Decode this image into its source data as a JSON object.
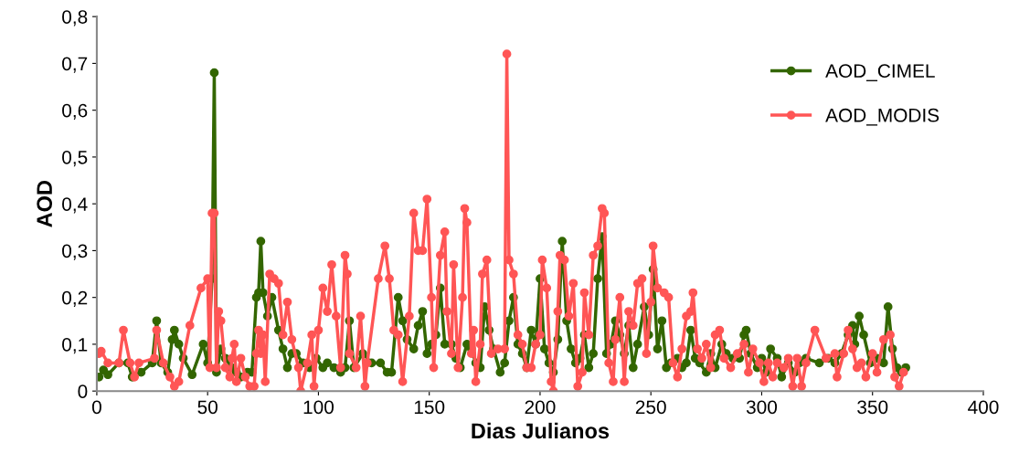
{
  "chart_data": {
    "type": "line",
    "xlabel": "Dias Julianos",
    "ylabel": "AOD",
    "xlim": [
      0,
      400
    ],
    "xticks": [
      0,
      50,
      100,
      150,
      200,
      250,
      300,
      350,
      400
    ],
    "ylim": [
      0,
      0.8
    ],
    "yticks": [
      0,
      {
        "value": 0.1,
        "label": "0,1"
      },
      {
        "value": 0.2,
        "label": "0,2"
      },
      {
        "value": 0.3,
        "label": "0,3"
      },
      {
        "value": 0.4,
        "label": "0,4"
      },
      {
        "value": 0.5,
        "label": "0,5"
      },
      {
        "value": 0.6,
        "label": "0,6"
      },
      {
        "value": 0.7,
        "label": "0,7"
      },
      {
        "value": 0.8,
        "label": "0,8"
      }
    ],
    "grid": false,
    "legend": "top right",
    "marker": "circle",
    "line_style": "solid",
    "series": [
      {
        "name": "AOD_CIMEL",
        "color": "#336600",
        "x": [
          1,
          3,
          5,
          10,
          14,
          16,
          20,
          25,
          27,
          29,
          32,
          34,
          35,
          37,
          39,
          43,
          48,
          50,
          52,
          53,
          54,
          56,
          58,
          61,
          63,
          65,
          68,
          70,
          72,
          73,
          74,
          75,
          77,
          79,
          82,
          84,
          86,
          88,
          90,
          93,
          96,
          99,
          102,
          104,
          107,
          110,
          112,
          114,
          116,
          120,
          124,
          128,
          131,
          133,
          136,
          138,
          140,
          143,
          145,
          147,
          149,
          151,
          153,
          155,
          157,
          160,
          162,
          164,
          167,
          169,
          171,
          173,
          175,
          177,
          179,
          182,
          184,
          186,
          188,
          190,
          192,
          194,
          196,
          198,
          200,
          202,
          204,
          206,
          208,
          210,
          212,
          214,
          216,
          218,
          220,
          222,
          224,
          226,
          228,
          230,
          232,
          234,
          236,
          238,
          240,
          242,
          244,
          247,
          249,
          251,
          253,
          255,
          257,
          259,
          262,
          264,
          266,
          268,
          270,
          272,
          275,
          277,
          279,
          282,
          284,
          287,
          290,
          292,
          293,
          295,
          298,
          300,
          302,
          304,
          307,
          309,
          312,
          315,
          317,
          320,
          326,
          330,
          333,
          336,
          339,
          341,
          342,
          344,
          346,
          349,
          352,
          355,
          357,
          359,
          361,
          363,
          365
        ],
        "values": [
          0.03,
          0.045,
          0.035,
          0.06,
          0.06,
          0.03,
          0.04,
          0.06,
          0.15,
          0.06,
          0.04,
          0.11,
          0.13,
          0.1,
          0.07,
          0.035,
          0.1,
          0.06,
          0.24,
          0.68,
          0.04,
          0.09,
          0.07,
          0.05,
          0.04,
          0.03,
          0.04,
          0.04,
          0.2,
          0.21,
          0.32,
          0.21,
          0.16,
          0.2,
          0.13,
          0.09,
          0.05,
          0.08,
          0.08,
          0.06,
          0.05,
          0.07,
          0.05,
          0.06,
          0.05,
          0.04,
          0.05,
          0.15,
          0.05,
          0.08,
          0.06,
          0.06,
          0.04,
          0.04,
          0.2,
          0.15,
          0.11,
          0.09,
          0.14,
          0.17,
          0.08,
          0.1,
          0.12,
          0.22,
          0.1,
          0.1,
          0.07,
          0.05,
          0.1,
          0.09,
          0.06,
          0.05,
          0.18,
          0.13,
          0.09,
          0.04,
          0.06,
          0.15,
          0.2,
          0.1,
          0.08,
          0.05,
          0.13,
          0.1,
          0.24,
          0.09,
          0.06,
          0.04,
          0.11,
          0.32,
          0.15,
          0.09,
          0.06,
          0.07,
          0.12,
          0.05,
          0.08,
          0.24,
          0.33,
          0.08,
          0.1,
          0.15,
          0.12,
          0.08,
          0.14,
          0.05,
          0.1,
          0.18,
          0.12,
          0.26,
          0.09,
          0.15,
          0.05,
          0.06,
          0.07,
          0.05,
          0.06,
          0.13,
          0.07,
          0.06,
          0.04,
          0.08,
          0.05,
          0.1,
          0.08,
          0.07,
          0.07,
          0.12,
          0.13,
          0.08,
          0.05,
          0.07,
          0.04,
          0.09,
          0.07,
          0.03,
          0.06,
          0.04,
          0.06,
          0.07,
          0.06,
          0.07,
          0.06,
          0.08,
          0.12,
          0.14,
          0.1,
          0.16,
          0.12,
          0.06,
          0.07,
          0.06,
          0.18,
          0.09,
          0.05,
          0.04,
          0.05
        ]
      },
      {
        "name": "AOD_MODIS",
        "color": "#ff5555",
        "x": [
          1,
          2,
          5,
          10,
          12,
          15,
          17,
          19,
          26,
          27,
          30,
          33,
          35,
          37,
          42,
          47,
          50,
          51,
          52,
          53,
          54,
          55,
          56,
          58,
          60,
          61,
          62,
          63,
          65,
          67,
          69,
          71,
          72,
          73,
          74,
          75,
          76,
          78,
          80,
          82,
          84,
          86,
          88,
          91,
          92,
          95,
          97,
          98,
          100,
          102,
          104,
          106,
          108,
          110,
          112,
          113,
          114,
          117,
          119,
          121,
          122,
          127,
          130,
          132,
          134,
          136,
          138,
          141,
          143,
          145,
          147,
          149,
          151,
          152,
          155,
          157,
          158,
          160,
          161,
          163,
          165,
          166,
          167,
          169,
          170,
          171,
          173,
          174,
          176,
          178,
          181,
          184,
          185,
          186,
          188,
          190,
          192,
          194,
          196,
          198,
          200,
          201,
          203,
          205,
          206,
          208,
          209,
          211,
          213,
          215,
          217,
          219,
          220,
          222,
          224,
          226,
          228,
          229,
          231,
          233,
          234,
          236,
          238,
          240,
          242,
          244,
          246,
          248,
          250,
          251,
          253,
          256,
          258,
          260,
          262,
          264,
          266,
          268,
          269,
          271,
          273,
          275,
          277,
          279,
          281,
          283,
          286,
          289,
          292,
          294,
          296,
          299,
          301,
          303,
          305,
          307,
          310,
          312,
          314,
          316,
          318,
          320,
          324,
          329,
          333,
          334,
          337,
          339,
          341,
          343,
          345,
          347,
          350,
          352,
          355,
          358,
          360,
          362,
          364
        ],
        "values": [
          0.08,
          0.085,
          0.06,
          0.06,
          0.13,
          0.06,
          0.03,
          0.06,
          0.07,
          0.13,
          0.06,
          0.03,
          0.01,
          0.02,
          0.14,
          0.22,
          0.24,
          0.05,
          0.38,
          0.38,
          0.05,
          0.17,
          0.15,
          0.05,
          0.03,
          0.07,
          0.1,
          0.02,
          0.07,
          0.03,
          0.01,
          0.01,
          0.08,
          0.13,
          0.08,
          0.12,
          0.02,
          0.25,
          0.24,
          0.23,
          0.12,
          0.19,
          0.11,
          0.05,
          0.0,
          0.06,
          0.12,
          0.01,
          0.13,
          0.22,
          0.17,
          0.27,
          0.16,
          0.05,
          0.29,
          0.25,
          0.08,
          0.05,
          0.16,
          0.01,
          0.06,
          0.24,
          0.31,
          0.24,
          0.13,
          0.12,
          0.02,
          0.16,
          0.38,
          0.3,
          0.3,
          0.41,
          0.2,
          0.05,
          0.29,
          0.34,
          0.17,
          0.08,
          0.27,
          0.05,
          0.2,
          0.39,
          0.36,
          0.08,
          0.13,
          0.02,
          0.1,
          0.25,
          0.28,
          0.08,
          0.09,
          0.09,
          0.72,
          0.28,
          0.25,
          0.12,
          0.1,
          0.05,
          0.05,
          0.1,
          0.12,
          0.28,
          0.22,
          0.02,
          0.0,
          0.17,
          0.29,
          0.28,
          0.16,
          0.23,
          0.01,
          0.04,
          0.21,
          0.12,
          0.29,
          0.31,
          0.39,
          0.38,
          0.06,
          0.02,
          0.11,
          0.2,
          0.02,
          0.17,
          0.14,
          0.23,
          0.24,
          0.08,
          0.19,
          0.31,
          0.22,
          0.21,
          0.2,
          0.06,
          0.03,
          0.09,
          0.16,
          0.17,
          0.21,
          0.09,
          0.07,
          0.1,
          0.05,
          0.12,
          0.13,
          0.07,
          0.05,
          0.08,
          0.1,
          0.04,
          0.09,
          0.06,
          0.02,
          0.06,
          0.03,
          0.06,
          0.05,
          0.07,
          0.01,
          0.07,
          0.01,
          0.06,
          0.13,
          0.07,
          0.08,
          0.03,
          0.08,
          0.13,
          0.09,
          0.05,
          0.06,
          0.03,
          0.08,
          0.04,
          0.11,
          0.12,
          0.03,
          0.01,
          0.04
        ]
      }
    ]
  }
}
